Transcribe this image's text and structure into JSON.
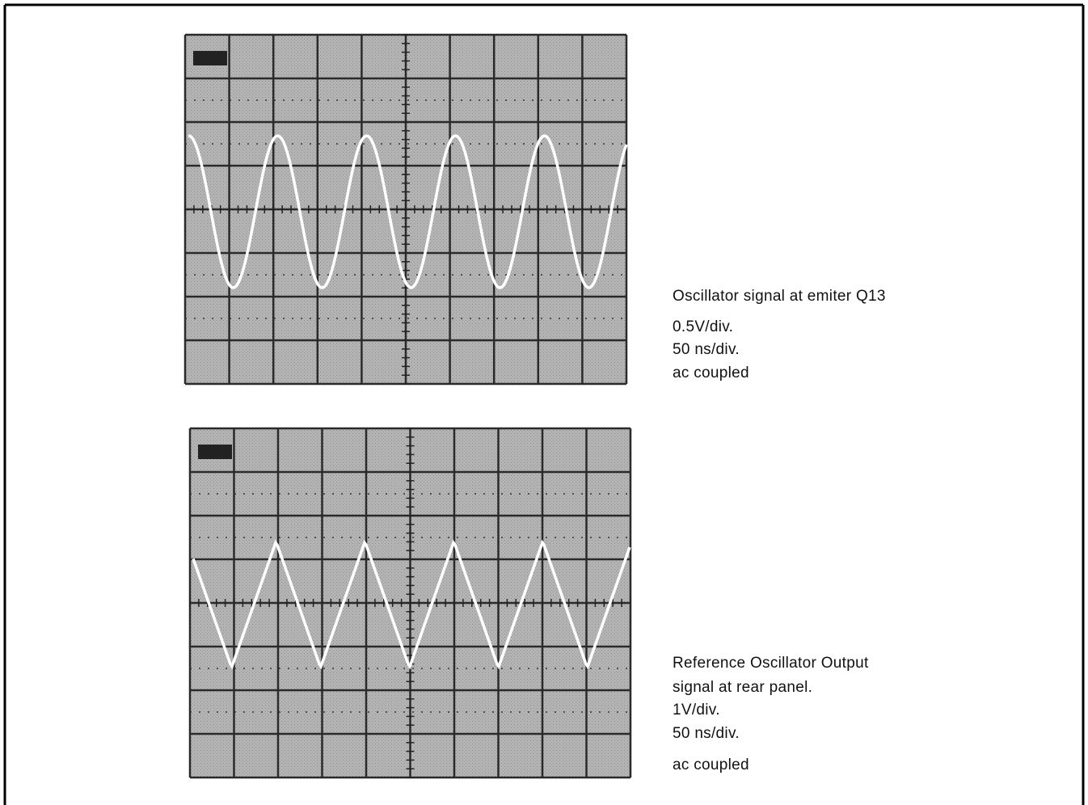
{
  "figures": [
    {
      "caption": [
        "Oscillator signal at emiter Q13",
        "0.5V/div.",
        "50 ns/div.",
        "ac coupled"
      ]
    },
    {
      "caption": [
        "Reference Oscillator Output",
        "signal at rear panel.",
        "1V/div.",
        "50 ns/div.",
        "ac coupled"
      ]
    }
  ]
}
